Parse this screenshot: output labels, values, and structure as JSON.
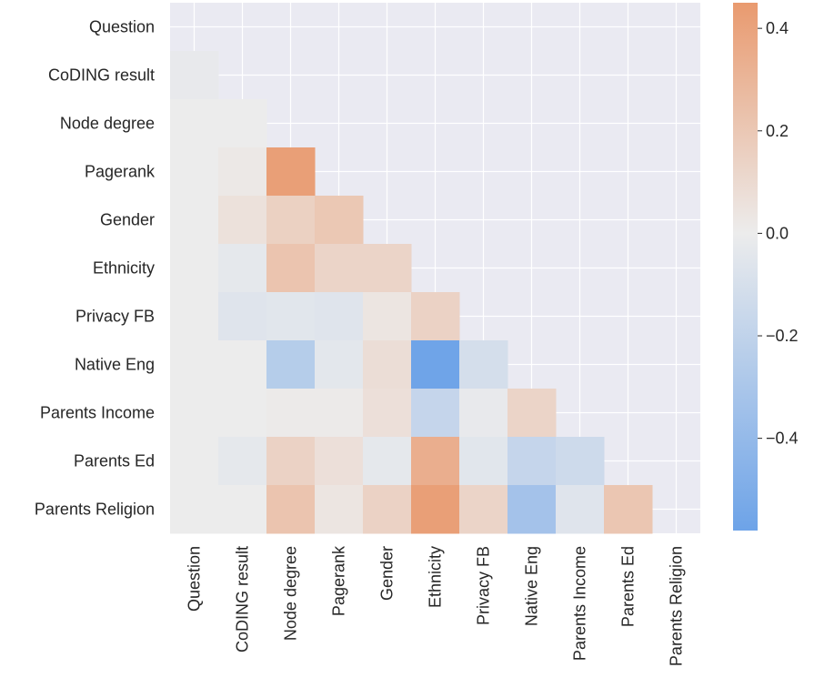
{
  "chart_data": {
    "type": "heatmap",
    "variables": [
      "Question",
      "CoDING result",
      "Node degree",
      "Pagerank",
      "Gender",
      "Ethnicity",
      "Privacy FB",
      "Native Eng",
      "Parents Income",
      "Parents Ed",
      "Parents Religion"
    ],
    "mask": "upper-triangle-including-diagonal",
    "values": [
      [
        null,
        null,
        null,
        null,
        null,
        null,
        null,
        null,
        null,
        null,
        null
      ],
      [
        -0.02,
        null,
        null,
        null,
        null,
        null,
        null,
        null,
        null,
        null,
        null
      ],
      [
        0.0,
        0.0,
        null,
        null,
        null,
        null,
        null,
        null,
        null,
        null,
        null
      ],
      [
        0.0,
        0.02,
        0.42,
        null,
        null,
        null,
        null,
        null,
        null,
        null,
        null
      ],
      [
        0.0,
        0.06,
        0.15,
        0.2,
        null,
        null,
        null,
        null,
        null,
        null,
        null
      ],
      [
        0.0,
        -0.03,
        0.22,
        0.13,
        0.13,
        null,
        null,
        null,
        null,
        null,
        null
      ],
      [
        0.0,
        -0.06,
        -0.05,
        -0.06,
        0.04,
        0.14,
        null,
        null,
        null,
        null,
        null
      ],
      [
        0.0,
        0.0,
        -0.25,
        -0.04,
        0.08,
        -0.57,
        -0.11,
        null,
        null,
        null,
        null
      ],
      [
        0.0,
        0.0,
        0.01,
        0.01,
        0.07,
        -0.18,
        -0.02,
        0.13,
        null,
        null,
        null
      ],
      [
        0.0,
        -0.03,
        0.14,
        0.07,
        -0.03,
        0.34,
        -0.05,
        -0.18,
        -0.14,
        null,
        null
      ],
      [
        0.0,
        0.0,
        0.22,
        0.04,
        0.14,
        0.42,
        0.13,
        -0.33,
        -0.06,
        0.21,
        null
      ]
    ],
    "vmin": -0.58,
    "vmax": 0.45,
    "colormap": {
      "negative": "#6da3e8",
      "center": "#ececec",
      "positive": "#e99a6f"
    },
    "colorbar_ticks": [
      0.4,
      0.2,
      0.0,
      -0.2,
      -0.4
    ],
    "colorbar_tick_labels": [
      "0.4",
      "0.2",
      "0.0",
      "−0.2",
      "−0.4"
    ],
    "background": "#eaeaf2",
    "grid": true
  }
}
